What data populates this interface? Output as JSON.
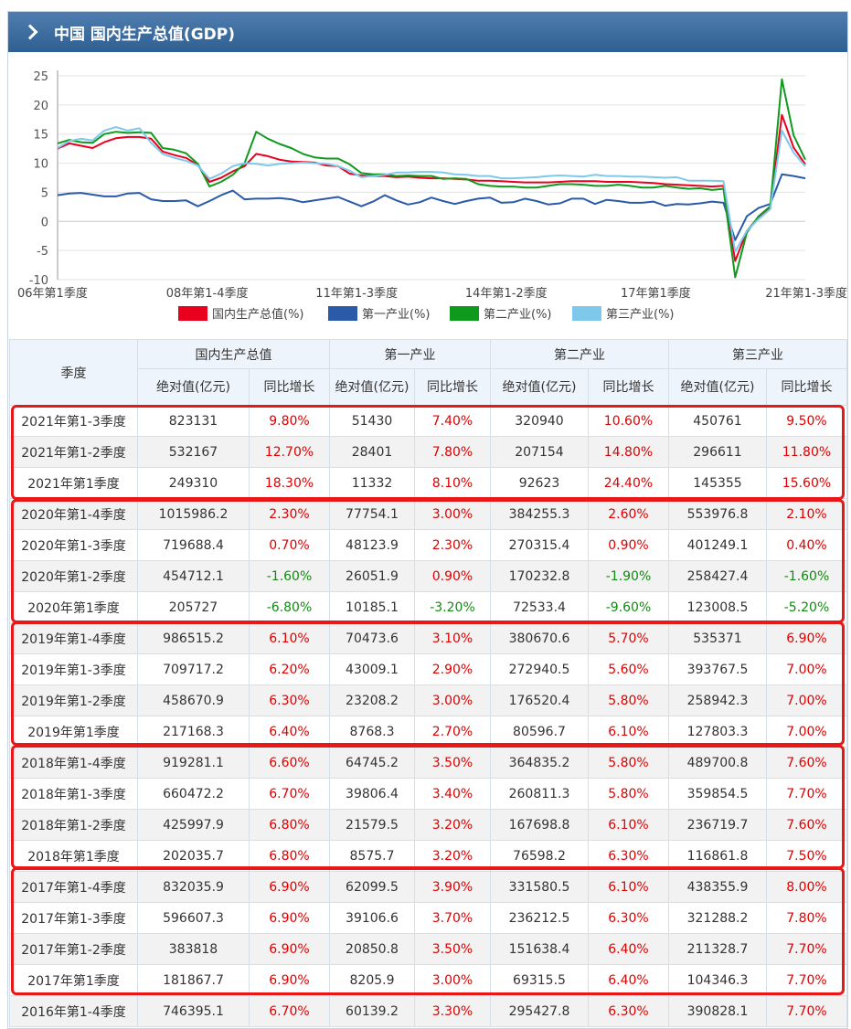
{
  "header": {
    "title": "中国 国内生产总值(GDP)"
  },
  "chart_data": {
    "type": "line",
    "x_tick_labels": [
      "06年第1季度",
      "08年第1-4季度",
      "11年第1-3季度",
      "14年第1-2季度",
      "17年第1季度",
      "21年第1-3季度"
    ],
    "y_ticks": [
      25,
      20,
      15,
      10,
      5,
      0,
      -5,
      -10
    ],
    "ylim": [
      -10,
      25
    ],
    "grid": true,
    "legend": "bottom",
    "series": [
      {
        "name": "国内生产总值(%)",
        "color": "#e8001e",
        "values": [
          12.5,
          13.4,
          13.0,
          12.6,
          13.6,
          14.3,
          14.5,
          14.5,
          14.2,
          12.0,
          11.4,
          10.9,
          9.7,
          6.8,
          7.5,
          8.6,
          9.5,
          11.6,
          11.2,
          10.6,
          10.3,
          10.2,
          10.1,
          9.6,
          9.5,
          8.2,
          7.9,
          7.8,
          7.8,
          7.6,
          7.7,
          7.5,
          7.4,
          7.4,
          7.3,
          7.2,
          7.0,
          7.0,
          6.9,
          6.8,
          6.7,
          6.7,
          6.7,
          6.8,
          6.9,
          6.9,
          6.9,
          6.8,
          6.8,
          6.8,
          6.7,
          6.6,
          6.4,
          6.3,
          6.2,
          6.1,
          6.0,
          6.1,
          -6.8,
          -1.6,
          0.7,
          2.3,
          18.3,
          12.7,
          9.8
        ]
      },
      {
        "name": "第一产业(%)",
        "color": "#2a5aa8",
        "values": [
          4.5,
          4.8,
          4.9,
          4.6,
          4.3,
          4.3,
          4.8,
          4.9,
          3.8,
          3.5,
          3.5,
          3.6,
          2.6,
          3.5,
          4.5,
          5.3,
          3.8,
          3.9,
          3.9,
          4.0,
          3.8,
          3.3,
          3.6,
          3.9,
          4.2,
          3.4,
          2.6,
          3.4,
          4.5,
          3.6,
          2.9,
          3.3,
          4.1,
          3.5,
          3.0,
          3.5,
          3.9,
          4.1,
          3.2,
          3.3,
          3.9,
          3.5,
          2.9,
          3.1,
          3.9,
          3.9,
          3.0,
          3.7,
          3.5,
          3.2,
          3.2,
          3.4,
          2.7,
          3.0,
          2.9,
          3.1,
          3.4,
          3.2,
          -3.2,
          0.9,
          2.3,
          3.0,
          8.1,
          7.8,
          7.4
        ]
      },
      {
        "name": "第二产业(%)",
        "color": "#0f9a1e",
        "values": [
          13.4,
          14.0,
          13.6,
          13.5,
          15.0,
          15.4,
          15.2,
          15.3,
          15.2,
          12.6,
          12.3,
          11.7,
          9.9,
          6.0,
          6.8,
          8.0,
          10.0,
          15.4,
          14.2,
          13.3,
          12.6,
          11.6,
          11.0,
          10.8,
          10.8,
          9.8,
          8.3,
          8.1,
          8.1,
          7.8,
          7.9,
          7.8,
          7.8,
          7.3,
          7.4,
          7.3,
          6.4,
          6.1,
          6.0,
          6.0,
          5.8,
          5.8,
          6.1,
          6.4,
          6.4,
          6.3,
          6.1,
          6.1,
          6.3,
          6.1,
          5.8,
          5.8,
          6.1,
          5.8,
          5.6,
          5.7,
          5.4,
          5.6,
          -9.6,
          -1.9,
          0.9,
          2.6,
          24.4,
          14.8,
          10.6
        ]
      },
      {
        "name": "第三产业(%)",
        "color": "#7ec8ec",
        "values": [
          12.6,
          13.8,
          14.2,
          13.9,
          15.6,
          16.2,
          15.6,
          16.0,
          13.5,
          11.6,
          10.9,
          10.4,
          9.6,
          7.3,
          8.2,
          9.5,
          10.0,
          9.9,
          9.6,
          9.9,
          10.0,
          10.1,
          10.0,
          9.9,
          9.5,
          8.7,
          7.6,
          7.8,
          8.0,
          8.4,
          8.4,
          8.5,
          8.5,
          8.4,
          8.1,
          8.0,
          7.8,
          7.8,
          7.4,
          7.4,
          7.5,
          7.6,
          7.8,
          7.9,
          7.8,
          7.7,
          8.0,
          7.8,
          7.8,
          7.7,
          7.7,
          7.6,
          7.5,
          7.6,
          7.0,
          7.0,
          7.0,
          6.9,
          -5.2,
          -1.6,
          0.4,
          2.1,
          15.6,
          11.8,
          9.5
        ]
      }
    ]
  },
  "table": {
    "col_quarter": "季度",
    "groups": [
      "国内生产总值",
      "第一产业",
      "第二产业",
      "第三产业"
    ],
    "sub_abs": "绝对值(亿元)",
    "sub_yoy": "同比增长",
    "rows": [
      [
        "2021年第1-3季度",
        "823131",
        "9.80%",
        "51430",
        "7.40%",
        "320940",
        "10.60%",
        "450761",
        "9.50%"
      ],
      [
        "2021年第1-2季度",
        "532167",
        "12.70%",
        "28401",
        "7.80%",
        "207154",
        "14.80%",
        "296611",
        "11.80%"
      ],
      [
        "2021年第1季度",
        "249310",
        "18.30%",
        "11332",
        "8.10%",
        "92623",
        "24.40%",
        "145355",
        "15.60%"
      ],
      [
        "2020年第1-4季度",
        "1015986.2",
        "2.30%",
        "77754.1",
        "3.00%",
        "384255.3",
        "2.60%",
        "553976.8",
        "2.10%"
      ],
      [
        "2020年第1-3季度",
        "719688.4",
        "0.70%",
        "48123.9",
        "2.30%",
        "270315.4",
        "0.90%",
        "401249.1",
        "0.40%"
      ],
      [
        "2020年第1-2季度",
        "454712.1",
        "-1.60%",
        "26051.9",
        "0.90%",
        "170232.8",
        "-1.90%",
        "258427.4",
        "-1.60%"
      ],
      [
        "2020年第1季度",
        "205727",
        "-6.80%",
        "10185.1",
        "-3.20%",
        "72533.4",
        "-9.60%",
        "123008.5",
        "-5.20%"
      ],
      [
        "2019年第1-4季度",
        "986515.2",
        "6.10%",
        "70473.6",
        "3.10%",
        "380670.6",
        "5.70%",
        "535371",
        "6.90%"
      ],
      [
        "2019年第1-3季度",
        "709717.2",
        "6.20%",
        "43009.1",
        "2.90%",
        "272940.5",
        "5.60%",
        "393767.5",
        "7.00%"
      ],
      [
        "2019年第1-2季度",
        "458670.9",
        "6.30%",
        "23208.2",
        "3.00%",
        "176520.4",
        "5.80%",
        "258942.3",
        "7.00%"
      ],
      [
        "2019年第1季度",
        "217168.3",
        "6.40%",
        "8768.3",
        "2.70%",
        "80596.7",
        "6.10%",
        "127803.3",
        "7.00%"
      ],
      [
        "2018年第1-4季度",
        "919281.1",
        "6.60%",
        "64745.2",
        "3.50%",
        "364835.2",
        "5.80%",
        "489700.8",
        "7.60%"
      ],
      [
        "2018年第1-3季度",
        "660472.2",
        "6.70%",
        "39806.4",
        "3.40%",
        "260811.3",
        "5.80%",
        "359854.5",
        "7.70%"
      ],
      [
        "2018年第1-2季度",
        "425997.9",
        "6.80%",
        "21579.5",
        "3.20%",
        "167698.8",
        "6.10%",
        "236719.7",
        "7.60%"
      ],
      [
        "2018年第1季度",
        "202035.7",
        "6.80%",
        "8575.7",
        "3.20%",
        "76598.2",
        "6.30%",
        "116861.8",
        "7.50%"
      ],
      [
        "2017年第1-4季度",
        "832035.9",
        "6.90%",
        "62099.5",
        "3.90%",
        "331580.5",
        "6.10%",
        "438355.9",
        "8.00%"
      ],
      [
        "2017年第1-3季度",
        "596607.3",
        "6.90%",
        "39106.6",
        "3.70%",
        "236212.5",
        "6.30%",
        "321288.2",
        "7.80%"
      ],
      [
        "2017年第1-2季度",
        "383818",
        "6.90%",
        "20850.8",
        "3.50%",
        "151638.4",
        "6.40%",
        "211328.7",
        "7.70%"
      ],
      [
        "2017年第1季度",
        "181867.7",
        "6.90%",
        "8205.9",
        "3.00%",
        "69315.5",
        "6.40%",
        "104346.3",
        "7.70%"
      ],
      [
        "2016年第1-4季度",
        "746395.1",
        "6.70%",
        "60139.2",
        "3.30%",
        "295427.8",
        "6.30%",
        "390828.1",
        "7.70%"
      ]
    ]
  }
}
